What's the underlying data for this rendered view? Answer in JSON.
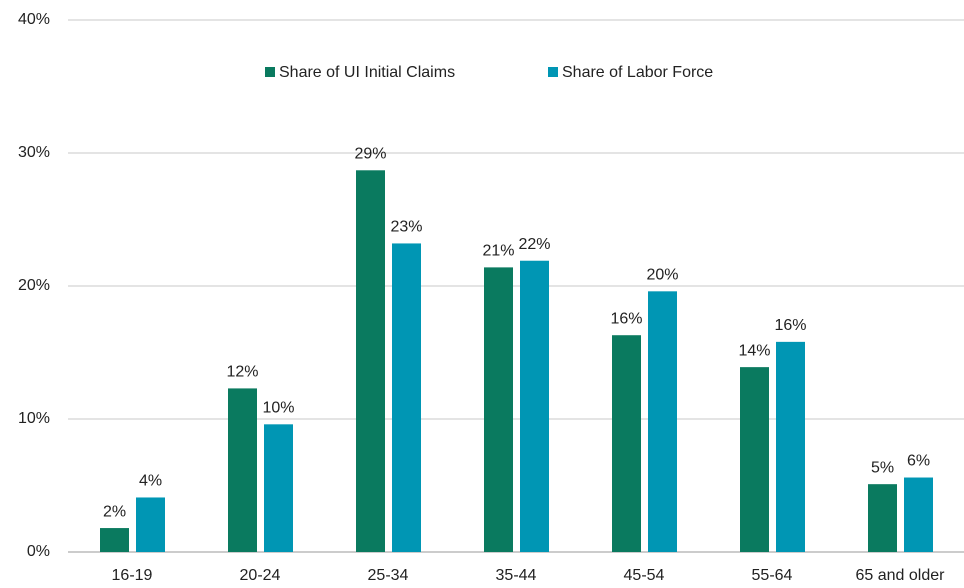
{
  "chart_data": {
    "type": "bar",
    "categories": [
      "16-19",
      "20-24",
      "25-34",
      "35-44",
      "45-54",
      "55-64",
      "65 and older"
    ],
    "series": [
      {
        "name": "Share of UI Initial Claims",
        "color": "#0a7a5f",
        "values": [
          1.8,
          12.3,
          28.7,
          21.4,
          16.3,
          13.9,
          5.1
        ],
        "value_labels": [
          "2%",
          "12%",
          "29%",
          "21%",
          "16%",
          "14%",
          "5%"
        ]
      },
      {
        "name": "Share of Labor Force",
        "color": "#0096b4",
        "values": [
          4.1,
          9.6,
          23.2,
          21.9,
          19.6,
          15.8,
          5.6
        ],
        "value_labels": [
          "4%",
          "10%",
          "23%",
          "22%",
          "20%",
          "16%",
          "6%"
        ]
      }
    ],
    "ylim": [
      0,
      40
    ],
    "yticks": [
      {
        "value": 0,
        "label": "0%"
      },
      {
        "value": 10,
        "label": "10%"
      },
      {
        "value": 20,
        "label": "20%"
      },
      {
        "value": 30,
        "label": "30%"
      },
      {
        "value": 40,
        "label": "40%"
      }
    ],
    "grid": true,
    "legend": "top"
  }
}
